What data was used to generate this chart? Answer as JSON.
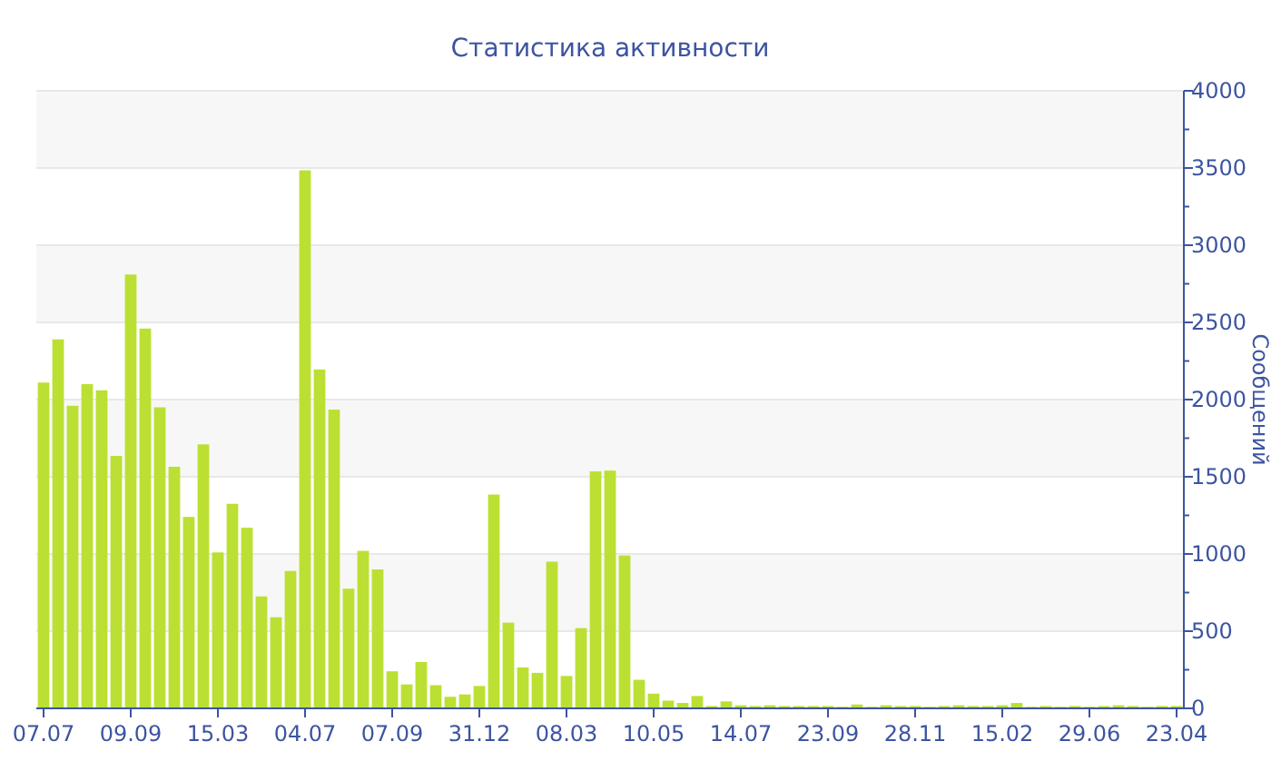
{
  "chart_data": {
    "type": "bar",
    "title": "Статистика активности",
    "ylabel": "Сообщений",
    "color": "#bbe033",
    "categories": [
      "07.07",
      null,
      null,
      null,
      null,
      null,
      "09.09",
      null,
      null,
      null,
      null,
      null,
      "15.03",
      null,
      null,
      null,
      null,
      null,
      "04.07",
      null,
      null,
      null,
      null,
      null,
      "07.09",
      null,
      null,
      null,
      null,
      null,
      "31.12",
      null,
      null,
      null,
      null,
      null,
      "08.03",
      null,
      null,
      null,
      null,
      null,
      "10.05",
      null,
      null,
      null,
      null,
      null,
      "14.07",
      null,
      null,
      null,
      null,
      null,
      "23.09",
      null,
      null,
      null,
      null,
      null,
      "28.11",
      null,
      null,
      null,
      null,
      null,
      "15.02",
      null,
      null,
      null,
      null,
      null,
      "29.06",
      null,
      null,
      null,
      null,
      null,
      "23.04"
    ],
    "values": [
      2110,
      2390,
      1960,
      2100,
      2060,
      1635,
      2810,
      2460,
      1950,
      1565,
      1240,
      1710,
      1010,
      1325,
      1170,
      725,
      590,
      890,
      3485,
      2195,
      1935,
      775,
      1020,
      900,
      240,
      155,
      300,
      150,
      75,
      90,
      145,
      1385,
      555,
      265,
      230,
      950,
      210,
      520,
      1535,
      1540,
      990,
      185,
      95,
      50,
      35,
      80,
      15,
      45,
      20,
      15,
      20,
      15,
      15,
      15,
      15,
      10,
      25,
      10,
      20,
      15,
      15,
      10,
      15,
      20,
      15,
      15,
      20,
      35,
      10,
      15,
      10,
      15,
      10,
      15,
      20,
      15,
      10,
      15,
      15
    ],
    "ylim": [
      0,
      4000
    ],
    "yticks": [
      0,
      {
        "value": 250,
        "label": null
      },
      500,
      {
        "value": 750,
        "label": null
      },
      1000,
      {
        "value": 1250,
        "label": null
      },
      1500,
      {
        "value": 1750,
        "label": null
      },
      2000,
      {
        "value": 2250,
        "label": null
      },
      2500,
      {
        "value": 2750,
        "label": null
      },
      3000,
      {
        "value": 3250,
        "label": null
      },
      3500,
      {
        "value": 3750,
        "label": null
      },
      4000
    ],
    "grid": "y"
  }
}
